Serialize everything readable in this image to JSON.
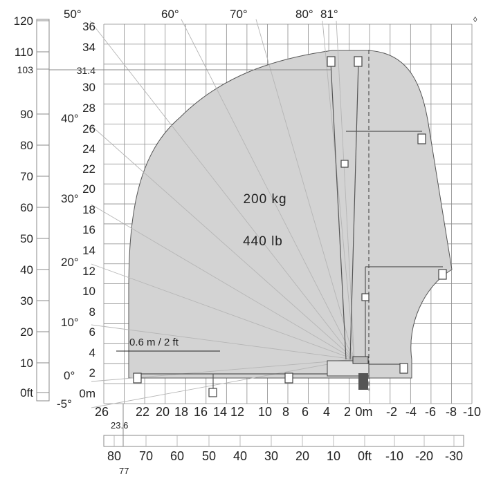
{
  "diagram": {
    "load_kg": "200 kg",
    "load_lb": "440 lb",
    "offset_label": "0.6 m / 2 ft",
    "colors": {
      "envelope_fill": "#d3d3d3",
      "envelope_stroke": "#555555",
      "grid": "#8a8a8a",
      "angle_line": "#b5b5b5",
      "boom": "#555555",
      "text": "#222222"
    },
    "left_ft_scale": [
      "120",
      "110",
      "103",
      "90",
      "80",
      "70",
      "60",
      "50",
      "40",
      "30",
      "20",
      "10",
      "0ft"
    ],
    "height_m_labels": [
      "36",
      "34",
      "31.4",
      "30",
      "28",
      "26",
      "24",
      "22",
      "20",
      "18",
      "16",
      "14",
      "12",
      "10",
      "8",
      "6",
      "4",
      "2",
      "0m"
    ],
    "angle_labels": [
      "50°",
      "60°",
      "70°",
      "80°",
      "81°",
      "40°",
      "30°",
      "20°",
      "10°",
      "0°",
      "-5°"
    ],
    "outreach_m_labels": [
      "26",
      "22",
      "20",
      "18",
      "16",
      "14",
      "12",
      "10",
      "8",
      "6",
      "4",
      "2",
      "0m",
      "-2",
      "-4",
      "-6",
      "-8",
      "-10"
    ],
    "outreach_m_extra": "23.6",
    "outreach_ft_labels": [
      "80",
      "70",
      "60",
      "50",
      "40",
      "30",
      "20",
      "10",
      "0ft",
      "-10",
      "-20",
      "-30"
    ],
    "outreach_ft_extra": "77"
  }
}
